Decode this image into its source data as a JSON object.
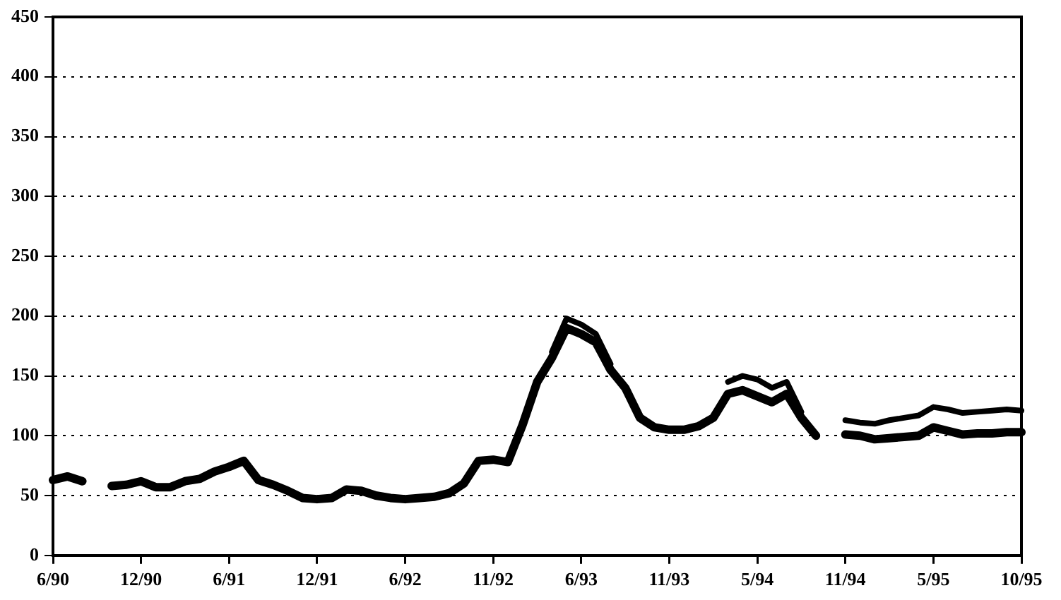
{
  "chart_data": {
    "type": "line",
    "categories": [
      "6/90",
      null,
      null,
      null,
      null,
      null,
      "12/90",
      null,
      null,
      null,
      null,
      null,
      "6/91",
      null,
      null,
      null,
      null,
      null,
      "12/91",
      null,
      null,
      null,
      null,
      null,
      "6/92",
      null,
      null,
      null,
      null,
      null,
      "11/92",
      null,
      null,
      null,
      null,
      null,
      "6/93",
      null,
      null,
      null,
      null,
      null,
      "11/93",
      null,
      null,
      null,
      null,
      null,
      "5/94",
      null,
      null,
      null,
      null,
      null,
      "11/94",
      null,
      null,
      null,
      null,
      null,
      "5/95",
      null,
      null,
      null,
      null,
      null,
      "10/95"
    ],
    "series": [
      {
        "color": "#000000",
        "values": [
          63,
          66,
          62,
          null,
          58,
          59,
          62,
          57,
          57,
          62,
          64,
          70,
          74,
          79,
          63,
          59,
          54,
          48,
          47,
          48,
          55,
          54,
          50,
          48,
          47,
          48,
          49,
          52,
          60,
          79,
          80,
          78,
          109,
          145,
          165,
          190,
          185,
          178,
          155,
          140,
          115,
          107,
          105,
          105,
          108,
          115,
          135,
          138,
          133,
          128,
          135,
          115,
          100,
          null,
          101,
          100,
          97,
          98,
          99,
          100,
          107,
          104,
          101,
          102,
          102,
          103,
          103
        ]
      },
      {
        "color": "#000000",
        "values": [
          null,
          null,
          null,
          null,
          null,
          null,
          null,
          null,
          null,
          null,
          null,
          null,
          null,
          null,
          null,
          null,
          null,
          null,
          null,
          null,
          null,
          null,
          null,
          null,
          null,
          null,
          null,
          null,
          null,
          null,
          null,
          null,
          null,
          null,
          170,
          198,
          193,
          185,
          160,
          null,
          null,
          null,
          null,
          null,
          null,
          null,
          145,
          150,
          147,
          140,
          145,
          120,
          null,
          null,
          113,
          111,
          110,
          113,
          115,
          117,
          124,
          122,
          119,
          120,
          121,
          122,
          121
        ]
      }
    ],
    "ylim": [
      0,
      450
    ],
    "yticks": [
      0,
      50,
      100,
      150,
      200,
      250,
      300,
      350,
      400,
      450
    ],
    "grid": "y",
    "legend": false,
    "marker": "none",
    "line_style": "solid"
  }
}
